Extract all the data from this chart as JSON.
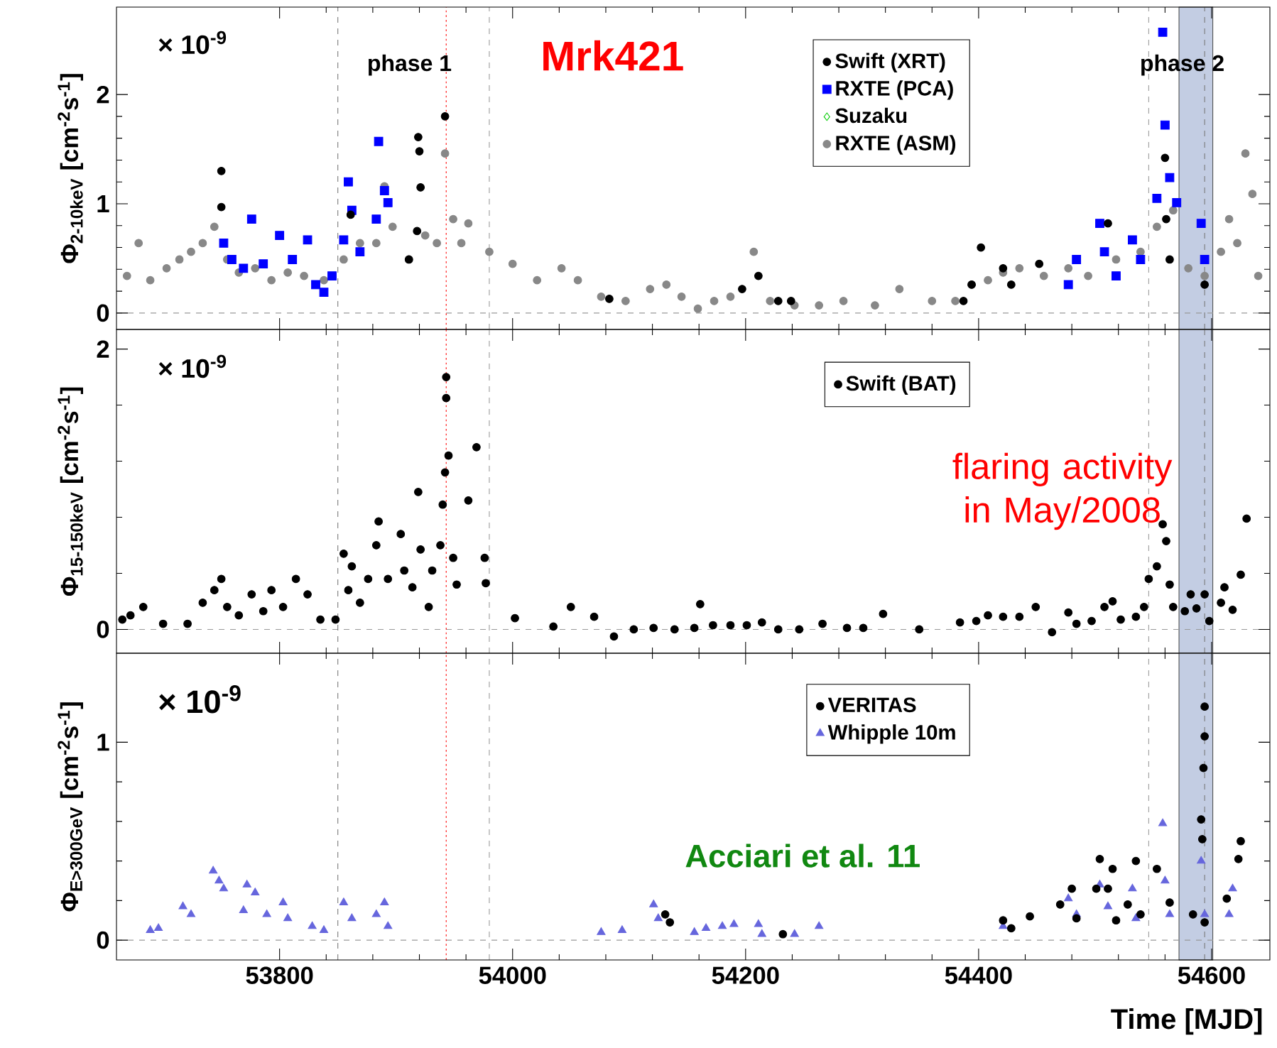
{
  "chart_data": [
    {
      "type": "scatter",
      "title": "Mrk421",
      "ylabel": "Φ$_{2-10keV}$ [cm$^{-2}$s$^{-1}$]",
      "xlim": [
        53660,
        54650
      ],
      "xticks": [
        53800,
        54000,
        54200,
        54400,
        54600
      ],
      "ylim": [
        -0.15,
        2.8
      ],
      "yticks": [
        0,
        1,
        2
      ],
      "tick_labels": "y",
      "legend": "top right",
      "annotations": [
        "× 10$^{-9}$",
        "phase 1",
        "phase 2"
      ],
      "ref_lines": [
        {
          "axis": "y",
          "value": 0,
          "color": "#999999",
          "line_style": "dashed"
        },
        {
          "axis": "x",
          "value": 53850,
          "color": "#777777",
          "line_style": "dashed"
        },
        {
          "axis": "x",
          "value": 53943,
          "color": "#ff0000",
          "line_style": "dotted"
        },
        {
          "axis": "x",
          "value": 53980,
          "color": "#999999",
          "line_style": "dashed"
        },
        {
          "axis": "x",
          "value": 54546,
          "color": "#999999",
          "line_style": "dashed"
        },
        {
          "axis": "x",
          "value": 54594,
          "color": "#777777",
          "line_style": "dashed"
        }
      ],
      "bands": [
        {
          "axis": "x",
          "from": 54572,
          "to": 54601,
          "color": "#c3cde3"
        }
      ],
      "series": [
        {
          "name": "Swift (XRT)",
          "color": "#000000",
          "marker": "circle",
          "x": [
            53750,
            53750,
            53861,
            53911,
            53918,
            53919,
            53920,
            53921,
            53942,
            54083,
            54197,
            54211,
            54228,
            54239,
            54387,
            54394,
            54402,
            54421,
            54428,
            54452,
            54511,
            54560,
            54561,
            54564,
            54594
          ],
          "values": [
            1.3,
            0.97,
            0.9,
            0.49,
            0.75,
            1.61,
            1.48,
            1.15,
            1.8,
            0.13,
            0.22,
            0.34,
            0.11,
            0.11,
            0.11,
            0.26,
            0.6,
            0.41,
            0.26,
            0.45,
            0.82,
            1.42,
            0.86,
            0.49,
            0.26
          ]
        },
        {
          "name": "RXTE (PCA)",
          "color": "#0000ff",
          "marker": "square",
          "x": [
            53752,
            53759,
            53769,
            53776,
            53786,
            53800,
            53811,
            53824,
            53831,
            53838,
            53845,
            53855,
            53859,
            53862,
            53869,
            53883,
            53885,
            53890,
            53893,
            54477,
            54484,
            54504,
            54508,
            54518,
            54532,
            54539,
            54553,
            54558,
            54560,
            54564,
            54570,
            54591,
            54594
          ],
          "values": [
            0.64,
            0.49,
            0.41,
            0.86,
            0.45,
            0.71,
            0.49,
            0.67,
            0.26,
            0.19,
            0.34,
            0.67,
            1.2,
            0.94,
            0.56,
            0.86,
            1.57,
            1.12,
            1.01,
            0.26,
            0.49,
            0.82,
            0.56,
            0.34,
            0.67,
            0.49,
            1.05,
            2.57,
            1.72,
            1.24,
            1.01,
            0.82,
            0.49
          ]
        },
        {
          "name": "Suzaku",
          "color": "#00cc00",
          "marker": "diamond"
        },
        {
          "name": "RXTE (ASM)",
          "color": "#888888",
          "marker": "circle",
          "x": [
            53669,
            53679,
            53689,
            53703,
            53714,
            53724,
            53734,
            53744,
            53755,
            53765,
            53779,
            53793,
            53807,
            53821,
            53838,
            53855,
            53869,
            53883,
            53890,
            53897,
            53911,
            53925,
            53935,
            53942,
            53949,
            53956,
            53962,
            53980,
            54000,
            54021,
            54042,
            54056,
            54076,
            54097,
            54118,
            54132,
            54145,
            54159,
            54173,
            54187,
            54207,
            54221,
            54242,
            54263,
            54284,
            54311,
            54332,
            54360,
            54380,
            54394,
            54408,
            54421,
            54435,
            54456,
            54477,
            54494,
            54518,
            54539,
            54553,
            54567,
            54580,
            54594,
            54608,
            54615,
            54622,
            54629,
            54635,
            54640
          ],
          "values": [
            0.34,
            0.64,
            0.3,
            0.41,
            0.49,
            0.56,
            0.64,
            0.79,
            0.49,
            0.37,
            0.41,
            0.3,
            0.37,
            0.34,
            0.3,
            0.49,
            0.64,
            0.64,
            1.16,
            0.79,
            0.49,
            0.71,
            0.64,
            1.46,
            0.86,
            0.64,
            0.82,
            0.56,
            0.45,
            0.3,
            0.41,
            0.3,
            0.15,
            0.11,
            0.22,
            0.26,
            0.15,
            0.04,
            0.11,
            0.15,
            0.56,
            0.11,
            0.07,
            0.07,
            0.11,
            0.07,
            0.22,
            0.11,
            0.11,
            0.26,
            0.3,
            0.37,
            0.41,
            0.34,
            0.41,
            0.34,
            0.49,
            0.56,
            0.79,
            0.94,
            0.41,
            0.34,
            0.56,
            0.86,
            0.64,
            1.46,
            1.09,
            0.34
          ]
        }
      ]
    },
    {
      "type": "scatter",
      "ylabel": "Φ$_{15-150keV}$ [cm$^{-2}$s$^{-1}$]",
      "xlim": [
        53660,
        54650
      ],
      "xticks": [
        53800,
        54000,
        54200,
        54400,
        54600
      ],
      "ylim": [
        -0.17,
        2.14
      ],
      "yticks": [
        0,
        2
      ],
      "tick_labels": "y",
      "legend": "top right",
      "annotations": [
        "× 10$^{-9}$",
        "flaring activity in May/2008"
      ],
      "ref_lines": [
        {
          "axis": "y",
          "value": 0,
          "color": "#999999",
          "line_style": "dashed"
        },
        {
          "axis": "x",
          "value": 53850,
          "color": "#777777",
          "line_style": "dashed"
        },
        {
          "axis": "x",
          "value": 53943,
          "color": "#ff0000",
          "line_style": "dotted"
        },
        {
          "axis": "x",
          "value": 53980,
          "color": "#999999",
          "line_style": "dashed"
        },
        {
          "axis": "x",
          "value": 54546,
          "color": "#999999",
          "line_style": "dashed"
        },
        {
          "axis": "x",
          "value": 54594,
          "color": "#777777",
          "line_style": "dashed"
        }
      ],
      "bands": [
        {
          "axis": "x",
          "from": 54572,
          "to": 54601,
          "color": "#c3cde3"
        }
      ],
      "series": [
        {
          "name": "Swift (BAT)",
          "color": "#000000",
          "marker": "circle",
          "x": [
            53665,
            53672,
            53683,
            53700,
            53721,
            53734,
            53744,
            53750,
            53755,
            53765,
            53776,
            53786,
            53793,
            53803,
            53814,
            53824,
            53835,
            53848,
            53855,
            53859,
            53862,
            53869,
            53876,
            53883,
            53885,
            53893,
            53904,
            53907,
            53914,
            53919,
            53921,
            53928,
            53931,
            53938,
            53940,
            53942,
            53943,
            53943,
            53945,
            53949,
            53952,
            53962,
            53969,
            53976,
            53977,
            54002,
            54035,
            54050,
            54070,
            54087,
            54104,
            54121,
            54139,
            54156,
            54161,
            54172,
            54187,
            54201,
            54214,
            54228,
            54246,
            54266,
            54287,
            54301,
            54318,
            54349,
            54384,
            54398,
            54408,
            54421,
            54435,
            54449,
            54463,
            54477,
            54484,
            54497,
            54508,
            54515,
            54522,
            54535,
            54542,
            54546,
            54553,
            54558,
            54561,
            54564,
            54567,
            54577,
            54582,
            54587,
            54594,
            54598,
            54608,
            54611,
            54618,
            54625,
            54630
          ],
          "values": [
            0.07,
            0.1,
            0.16,
            0.04,
            0.04,
            0.19,
            0.28,
            0.36,
            0.16,
            0.1,
            0.25,
            0.13,
            0.28,
            0.16,
            0.36,
            0.25,
            0.07,
            0.07,
            0.54,
            0.28,
            0.45,
            0.19,
            0.36,
            0.6,
            0.77,
            0.36,
            0.68,
            0.42,
            0.3,
            0.98,
            0.57,
            0.16,
            0.42,
            0.6,
            0.89,
            1.12,
            1.65,
            1.8,
            1.24,
            0.51,
            0.32,
            0.92,
            1.3,
            0.51,
            0.33,
            0.08,
            0.02,
            0.16,
            0.09,
            -0.05,
            0.0,
            0.01,
            0.0,
            0.01,
            0.18,
            0.03,
            0.03,
            0.03,
            0.05,
            0.0,
            0.0,
            0.04,
            0.01,
            0.01,
            0.11,
            0.0,
            0.05,
            0.06,
            0.1,
            0.09,
            0.09,
            0.16,
            -0.02,
            0.12,
            0.04,
            0.06,
            0.16,
            0.2,
            0.07,
            0.09,
            0.16,
            0.36,
            0.45,
            0.75,
            0.63,
            0.32,
            0.16,
            0.13,
            0.25,
            0.15,
            0.25,
            0.06,
            0.19,
            0.3,
            0.14,
            0.39,
            0.79
          ]
        }
      ]
    },
    {
      "type": "scatter",
      "ylabel": "Φ$_{E>300GeV}$ [cm$^{-2}$s$^{-1}$]",
      "xlabel": "Time [MJD]",
      "xlim": [
        53660,
        54650
      ],
      "xticks": [
        53800,
        54000,
        54200,
        54400,
        54600
      ],
      "ylim": [
        -0.1,
        1.45
      ],
      "yticks": [
        0,
        1
      ],
      "legend": "top right",
      "annotations": [
        "× 10$^{-9}$",
        "Acciari et al. 11"
      ],
      "ref_lines": [
        {
          "axis": "y",
          "value": 0,
          "color": "#999999",
          "line_style": "dashed"
        },
        {
          "axis": "x",
          "value": 53850,
          "color": "#777777",
          "line_style": "dashed"
        },
        {
          "axis": "x",
          "value": 53943,
          "color": "#ff0000",
          "line_style": "dotted"
        },
        {
          "axis": "x",
          "value": 53980,
          "color": "#999999",
          "line_style": "dashed"
        },
        {
          "axis": "x",
          "value": 54546,
          "color": "#999999",
          "line_style": "dashed"
        },
        {
          "axis": "x",
          "value": 54594,
          "color": "#777777",
          "line_style": "dashed"
        }
      ],
      "bands": [
        {
          "axis": "x",
          "from": 54572,
          "to": 54601,
          "color": "#c3cde3"
        }
      ],
      "series": [
        {
          "name": "VERITAS",
          "color": "#000000",
          "marker": "circle",
          "x": [
            54131,
            54135,
            54232,
            54421,
            54428,
            54444,
            54470,
            54480,
            54484,
            54501,
            54504,
            54511,
            54515,
            54518,
            54528,
            54535,
            54539,
            54553,
            54564,
            54584,
            54591,
            54592,
            54593,
            54594,
            54594,
            54594,
            54613,
            54623,
            54625
          ],
          "values": [
            0.13,
            0.09,
            0.03,
            0.1,
            0.06,
            0.12,
            0.18,
            0.26,
            0.11,
            0.26,
            0.41,
            0.26,
            0.36,
            0.1,
            0.18,
            0.4,
            0.13,
            0.36,
            0.19,
            0.13,
            0.61,
            0.51,
            0.87,
            1.03,
            1.18,
            0.09,
            0.21,
            0.41,
            0.5
          ]
        },
        {
          "name": "Whipple 10m",
          "color": "#6666dd",
          "marker": "triangle",
          "x": [
            53689,
            53696,
            53717,
            53724,
            53743,
            53748,
            53752,
            53769,
            53772,
            53779,
            53789,
            53803,
            53807,
            53828,
            53838,
            53855,
            53862,
            53883,
            53890,
            53893,
            54076,
            54094,
            54121,
            54125,
            54156,
            54166,
            54180,
            54190,
            54211,
            54214,
            54242,
            54263,
            54421,
            54477,
            54484,
            54504,
            54511,
            54532,
            54535,
            54558,
            54560,
            54564,
            54591,
            54594,
            54615,
            54618
          ],
          "values": [
            0.05,
            0.06,
            0.17,
            0.13,
            0.35,
            0.3,
            0.26,
            0.15,
            0.28,
            0.24,
            0.13,
            0.19,
            0.11,
            0.07,
            0.05,
            0.19,
            0.11,
            0.13,
            0.19,
            0.07,
            0.04,
            0.05,
            0.18,
            0.11,
            0.04,
            0.06,
            0.07,
            0.08,
            0.08,
            0.03,
            0.03,
            0.07,
            0.07,
            0.21,
            0.13,
            0.28,
            0.17,
            0.26,
            0.11,
            0.59,
            0.3,
            0.13,
            0.4,
            0.13,
            0.13,
            0.26
          ]
        }
      ]
    }
  ]
}
